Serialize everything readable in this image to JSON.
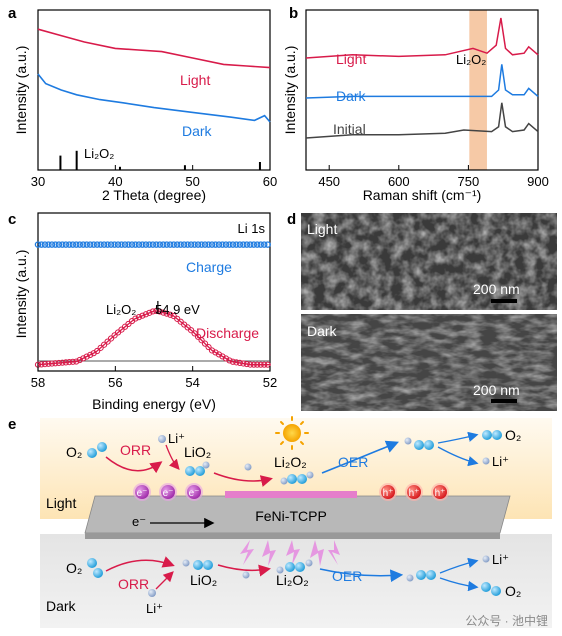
{
  "colors": {
    "light": "#d81b4a",
    "dark": "#1e7be0",
    "initial": "#444444",
    "li2o2_band": "#f6c9a6",
    "fit": "#d81b4a",
    "bg_light": "#fde9c2",
    "bg_dark": "#ececec",
    "substrate": "#b5b5b5",
    "catalyst": "#e57ecb",
    "electron": "#b43ab8",
    "hole": "#e52521",
    "o_atom": "#1aa6e8",
    "li_atom": "#8aa4cf"
  },
  "chart_data": [
    {
      "panel": "a",
      "type": "line",
      "xlabel": "2 Theta (degree)",
      "ylabel": "Intensity (a.u.)",
      "xlim": [
        30,
        60
      ],
      "xticks": [
        30,
        40,
        50,
        60
      ],
      "series": [
        {
          "name": "Light",
          "x": [
            30,
            33,
            36,
            40,
            43,
            46,
            50,
            54,
            57,
            60
          ],
          "y": [
            0.88,
            0.84,
            0.8,
            0.76,
            0.75,
            0.74,
            0.7,
            0.66,
            0.65,
            0.64
          ]
        },
        {
          "name": "Dark",
          "x": [
            30,
            31,
            33,
            35,
            38,
            41,
            45,
            50,
            55,
            58,
            59.3,
            60
          ],
          "y": [
            0.6,
            0.54,
            0.5,
            0.47,
            0.44,
            0.42,
            0.39,
            0.36,
            0.33,
            0.31,
            0.34,
            0.3
          ]
        }
      ],
      "reference": {
        "name": "Li2O2",
        "x": [
          32.9,
          35.0,
          40.6,
          49.0,
          58.7
        ],
        "h": [
          0.09,
          0.12,
          0.02,
          0.03,
          0.05
        ]
      },
      "legend": {
        "light": "Light",
        "dark": "Dark",
        "ref": "Li₂O₂"
      },
      "panel_label": "a"
    },
    {
      "panel": "b",
      "type": "line",
      "xlabel": "Raman shift (cm⁻¹)",
      "ylabel": "Intensity (a.u.)",
      "xlim": [
        400,
        900
      ],
      "xticks": [
        450,
        600,
        750,
        900
      ],
      "band": [
        752,
        790
      ],
      "band_label": "Li₂O₂",
      "series": [
        {
          "name": "Light",
          "x": [
            400,
            500,
            600,
            700,
            760,
            790,
            810,
            820,
            830,
            845,
            870,
            880,
            900
          ],
          "y": [
            0.7,
            0.72,
            0.71,
            0.72,
            0.76,
            0.73,
            0.78,
            0.95,
            0.76,
            0.72,
            0.73,
            0.77,
            0.72
          ]
        },
        {
          "name": "Dark",
          "x": [
            400,
            500,
            600,
            700,
            760,
            800,
            815,
            822,
            830,
            845,
            870,
            880,
            900
          ],
          "y": [
            0.45,
            0.46,
            0.46,
            0.46,
            0.46,
            0.46,
            0.5,
            0.66,
            0.5,
            0.47,
            0.47,
            0.51,
            0.46
          ]
        },
        {
          "name": "Initial",
          "x": [
            400,
            500,
            600,
            700,
            740,
            800,
            815,
            822,
            830,
            845,
            870,
            880,
            900
          ],
          "y": [
            0.2,
            0.22,
            0.22,
            0.23,
            0.25,
            0.24,
            0.27,
            0.42,
            0.27,
            0.24,
            0.25,
            0.29,
            0.24
          ]
        }
      ],
      "labels": {
        "light": "Light",
        "dark": "Dark",
        "initial": "Initial"
      },
      "panel_label": "b"
    },
    {
      "panel": "c",
      "type": "line",
      "title": "Li 1s",
      "xlabel": "Binding energy (eV)",
      "ylabel": "Intensity (a.u.)",
      "xlim": [
        58,
        52
      ],
      "xticks": [
        58,
        56,
        54,
        52
      ],
      "series": [
        {
          "name": "Charge",
          "x": [
            58,
            57,
            56,
            55,
            54,
            53,
            52
          ],
          "y": [
            0.8,
            0.8,
            0.8,
            0.8,
            0.8,
            0.8,
            0.8
          ]
        },
        {
          "name": "Discharge",
          "x": [
            58,
            57,
            56.5,
            56,
            55.5,
            55,
            54.9,
            54.5,
            54,
            53.5,
            53,
            52.5,
            52
          ],
          "y": [
            0.04,
            0.06,
            0.12,
            0.23,
            0.33,
            0.38,
            0.38,
            0.35,
            0.25,
            0.13,
            0.06,
            0.04,
            0.04
          ]
        }
      ],
      "peak": {
        "x": 54.9,
        "label": "54.9 eV",
        "species": "Li₂O₂"
      },
      "labels": {
        "charge": "Charge",
        "discharge": "Discharge"
      },
      "panel_label": "c"
    }
  ],
  "panel_d": {
    "panel_label": "d",
    "top_label": "Light",
    "bottom_label": "Dark",
    "scale_top": "200 nm",
    "scale_bottom": "200 nm"
  },
  "panel_e": {
    "panel_label": "e",
    "light_label": "Light",
    "dark_label": "Dark",
    "substrate_label": "FeNi-TCPP",
    "electron_arrow_label": "e⁻",
    "top": {
      "o2_in": "O₂",
      "orr": "ORR",
      "li_in": "Li⁺",
      "lio2": "LiO₂",
      "li2o2": "Li₂O₂",
      "oer": "OER",
      "o2_out": "O₂",
      "li_out": "Li⁺",
      "electrons": [
        "e⁻",
        "e⁻",
        "e⁻"
      ],
      "holes": [
        "h⁺",
        "h⁺",
        "h⁺"
      ]
    },
    "bottom": {
      "o2_in": "O₂",
      "orr": "ORR",
      "li_in": "Li⁺",
      "lio2": "LiO₂",
      "li2o2": "Li₂O₂",
      "oer": "OER",
      "li_out": "Li⁺",
      "o2_out": "O₂"
    },
    "watermark": "公众号 · 池中锂"
  }
}
